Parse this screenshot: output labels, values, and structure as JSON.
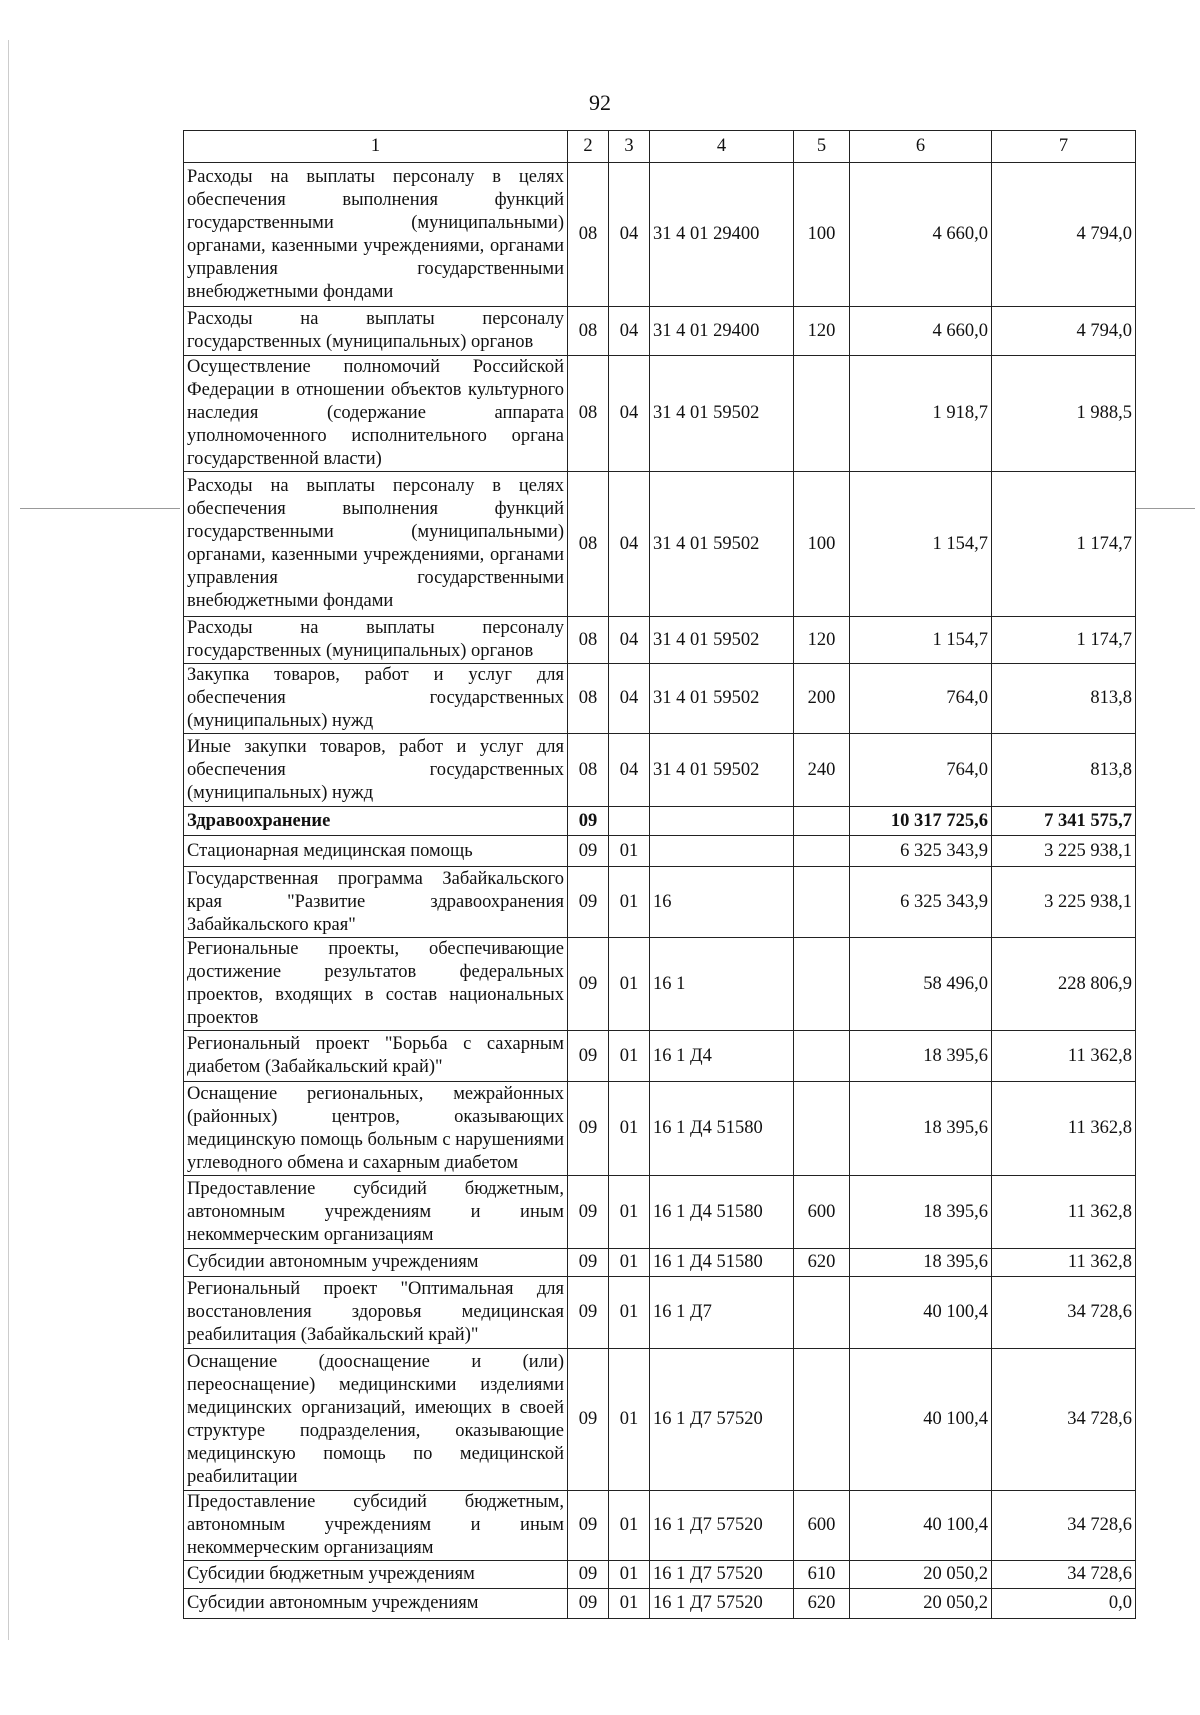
{
  "page_number": "92",
  "table": {
    "headers": [
      "1",
      "2",
      "3",
      "4",
      "5",
      "6",
      "7"
    ],
    "rows": [
      {
        "name": "Расходы на выплаты персоналу в целях обеспечения выполнения функций государственными (муниципальными) органами, казенными учреждениями, органами управления государственными внебюджетными фондами",
        "c2": "08",
        "c3": "04",
        "c4": "31 4 01 29400",
        "c5": "100",
        "c6": "4 660,0",
        "c7": "4 794,0"
      },
      {
        "name": "Расходы на выплаты персоналу государственных (муниципальных) органов",
        "c2": "08",
        "c3": "04",
        "c4": "31 4 01 29400",
        "c5": "120",
        "c6": "4 660,0",
        "c7": "4 794,0"
      },
      {
        "name": "Осуществление полномочий Российской Федерации в отношении объектов культурного наследия (содержание аппарата уполномоченного исполнительного органа государственной власти)",
        "c2": "08",
        "c3": "04",
        "c4": "31 4 01 59502",
        "c5": "",
        "c6": "1 918,7",
        "c7": "1 988,5"
      },
      {
        "name": "Расходы на выплаты персоналу в целях обеспечения выполнения функций государственными (муниципальными) органами, казенными учреждениями, органами управления государственными внебюджетными фондами",
        "c2": "08",
        "c3": "04",
        "c4": "31 4 01 59502",
        "c5": "100",
        "c6": "1 154,7",
        "c7": "1 174,7"
      },
      {
        "name": "Расходы на выплаты персоналу государственных (муниципальных) органов",
        "c2": "08",
        "c3": "04",
        "c4": "31 4 01 59502",
        "c5": "120",
        "c6": "1 154,7",
        "c7": "1 174,7"
      },
      {
        "name": "Закупка товаров, работ и услуг для обеспечения государственных (муниципальных) нужд",
        "c2": "08",
        "c3": "04",
        "c4": "31 4 01 59502",
        "c5": "200",
        "c6": "764,0",
        "c7": "813,8"
      },
      {
        "name": "Иные закупки товаров, работ и услуг для обеспечения государственных (муниципальных) нужд",
        "c2": "08",
        "c3": "04",
        "c4": "31 4 01 59502",
        "c5": "240",
        "c6": "764,0",
        "c7": "813,8"
      },
      {
        "name": "Здравоохранение",
        "c2": "09",
        "c3": "",
        "c4": "",
        "c5": "",
        "c6": "10 317 725,6",
        "c7": "7 341 575,7",
        "bold": true
      },
      {
        "name": "Стационарная медицинская помощь",
        "c2": "09",
        "c3": "01",
        "c4": "",
        "c5": "",
        "c6": "6 325 343,9",
        "c7": "3 225 938,1"
      },
      {
        "name": "Государственная программа Забайкальского края \"Развитие здравоохранения Забайкальского края\"",
        "c2": "09",
        "c3": "01",
        "c4": "16",
        "c5": "",
        "c6": "6 325 343,9",
        "c7": "3 225 938,1"
      },
      {
        "name": "Региональные проекты, обеспечивающие достижение результатов федеральных проектов, входящих в состав национальных проектов",
        "c2": "09",
        "c3": "01",
        "c4": "16 1",
        "c5": "",
        "c6": "58 496,0",
        "c7": "228 806,9"
      },
      {
        "name": "Региональный проект \"Борьба с сахарным диабетом (Забайкальский край)\"",
        "c2": "09",
        "c3": "01",
        "c4": "16 1 Д4",
        "c5": "",
        "c6": "18 395,6",
        "c7": "11 362,8"
      },
      {
        "name": "Оснащение региональных, межрайонных (районных) центров, оказывающих медицинскую помощь больным с нарушениями углеводного обмена и сахарным диабетом",
        "c2": "09",
        "c3": "01",
        "c4": "16 1 Д4 51580",
        "c5": "",
        "c6": "18 395,6",
        "c7": "11 362,8"
      },
      {
        "name": "Предоставление субсидий бюджетным, автономным учреждениям и иным некоммерческим организациям",
        "c2": "09",
        "c3": "01",
        "c4": "16 1 Д4 51580",
        "c5": "600",
        "c6": "18 395,6",
        "c7": "11 362,8"
      },
      {
        "name": "Субсидии автономным учреждениям",
        "c2": "09",
        "c3": "01",
        "c4": "16 1 Д4 51580",
        "c5": "620",
        "c6": "18 395,6",
        "c7": "11 362,8"
      },
      {
        "name": "Региональный проект \"Оптимальная для восстановления здоровья медицинская реабилитация (Забайкальский край)\"",
        "c2": "09",
        "c3": "01",
        "c4": "16 1 Д7",
        "c5": "",
        "c6": "40 100,4",
        "c7": "34 728,6"
      },
      {
        "name": "Оснащение (дооснащение и (или) переоснащение) медицинскими изделиями медицинских организаций, имеющих в своей структуре подразделения, оказывающие медицинскую помощь по медицинской реабилитации",
        "c2": "09",
        "c3": "01",
        "c4": "16 1 Д7 57520",
        "c5": "",
        "c6": "40 100,4",
        "c7": "34 728,6"
      },
      {
        "name": "Предоставление субсидий бюджетным, автономным учреждениям и иным некоммерческим организациям",
        "c2": "09",
        "c3": "01",
        "c4": "16 1 Д7 57520",
        "c5": "600",
        "c6": "40 100,4",
        "c7": "34 728,6"
      },
      {
        "name": "Субсидии бюджетным учреждениям",
        "c2": "09",
        "c3": "01",
        "c4": "16 1 Д7 57520",
        "c5": "610",
        "c6": "20 050,2",
        "c7": "34 728,6"
      },
      {
        "name": "Субсидии автономным учреждениям",
        "c2": "09",
        "c3": "01",
        "c4": "16 1 Д7 57520",
        "c5": "620",
        "c6": "20 050,2",
        "c7": "0,0"
      }
    ]
  }
}
